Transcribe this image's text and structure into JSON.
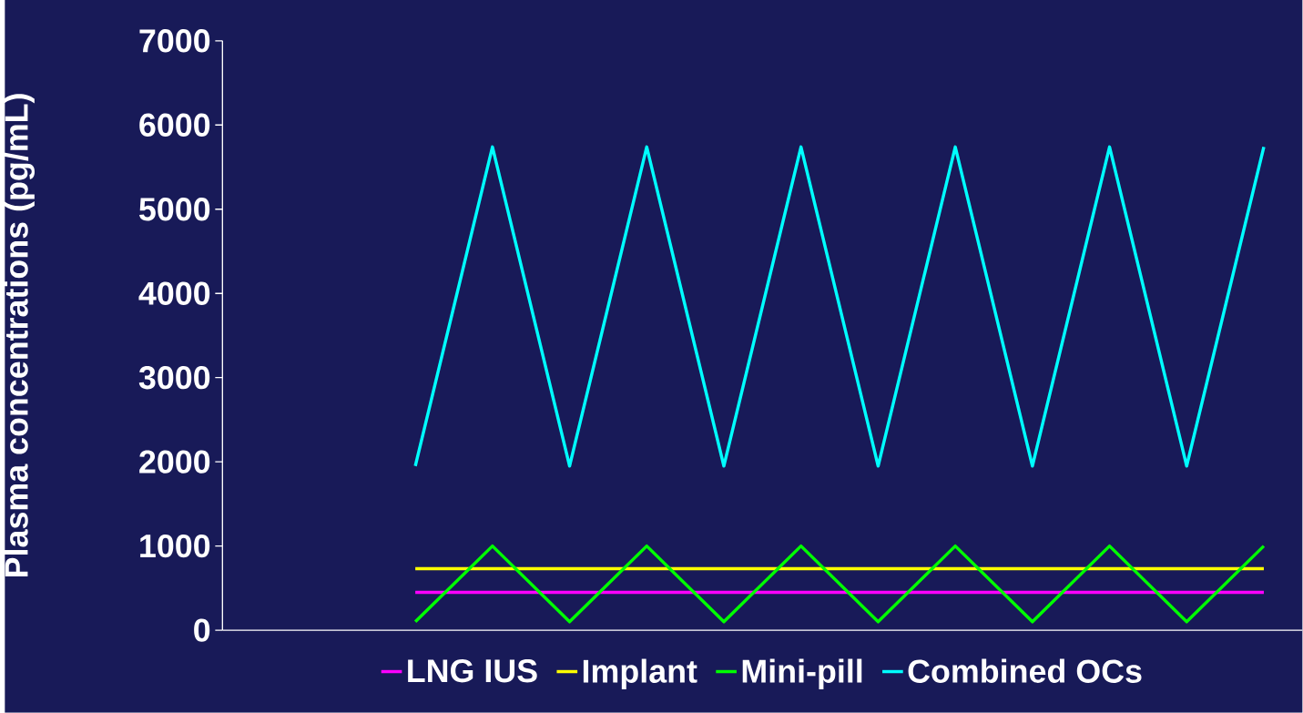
{
  "chart_data": {
    "type": "line",
    "ylabel": "Plasma concentrations (pg/mL)",
    "categories": [
      null,
      null,
      null,
      null,
      null,
      null,
      null,
      null,
      null,
      null,
      null,
      null,
      null,
      null
    ],
    "series": [
      {
        "name": "LNG IUS",
        "color": "#ff00ff",
        "values": [
          null,
          null,
          450,
          450,
          450,
          450,
          450,
          450,
          450,
          450,
          450,
          450,
          450,
          450
        ]
      },
      {
        "name": "Implant",
        "color": "#ffff00",
        "values": [
          null,
          null,
          730,
          730,
          730,
          730,
          730,
          730,
          730,
          730,
          730,
          730,
          730,
          730
        ]
      },
      {
        "name": "Mini-pill",
        "color": "#00ff00",
        "values": [
          null,
          null,
          100,
          1000,
          100,
          1000,
          100,
          1000,
          100,
          1000,
          100,
          1000,
          100,
          1000
        ]
      },
      {
        "name": "Combined OCs",
        "color": "#00ffff",
        "values": [
          null,
          null,
          1950,
          5740,
          1950,
          5740,
          1950,
          5740,
          1950,
          5740,
          1950,
          5740,
          1950,
          5740
        ]
      }
    ],
    "ylim": [
      0,
      7000
    ],
    "yticks": [
      0,
      1000,
      2000,
      3000,
      4000,
      5000,
      6000,
      7000
    ],
    "tick_labels": "y",
    "grid": false,
    "legend": "bottom",
    "marker": "none",
    "line_style": "solid"
  }
}
